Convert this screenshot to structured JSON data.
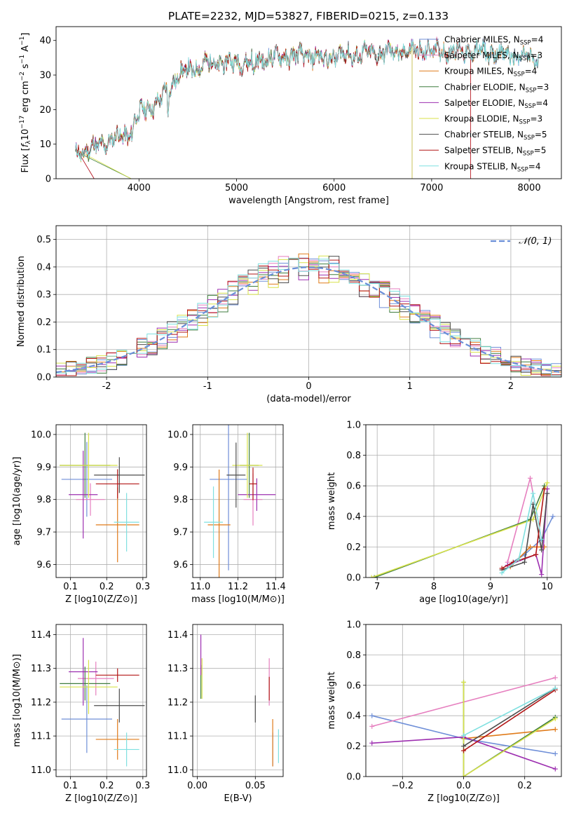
{
  "figure": {
    "title": "PLATE=2232, MJD=53827, FIBERID=0215, z=0.133"
  },
  "colors": {
    "Chabrier MILES": "#6f8fd8",
    "Salpeter MILES": "#e67fbf",
    "Kroupa MILES": "#e07b1a",
    "Chabrier ELODIE": "#3f7d3f",
    "Salpeter ELODIE": "#9d2fb0",
    "Kroupa ELODIE": "#d8e24a",
    "Chabrier STELIB": "#4d4d4d",
    "Salpeter STELIB": "#b31717",
    "Kroupa STELIB": "#7fe0e0",
    "normal": "#6a8fd8"
  },
  "chart_data": [
    {
      "type": "line",
      "panel": "spectrum",
      "title": "PLATE=2232, MJD=53827, FIBERID=0215, z=0.133",
      "xlabel": "wavelength [Angstrom, rest frame]",
      "ylabel": "Flux [f_λ 10^-17 erg cm^-2 s^-1 A^-1]",
      "xlim": [
        3150,
        8330
      ],
      "ylim": [
        0,
        44
      ],
      "xticks": [
        4000,
        5000,
        6000,
        7000,
        8000
      ],
      "yticks": [
        0,
        10,
        20,
        30,
        40
      ],
      "grid": false,
      "legend_position": "top-right",
      "series": [
        {
          "name": "Chabrier MILES, N_SSP=4",
          "x_range": [
            3350,
            8100
          ]
        },
        {
          "name": "Salpeter MILES, N_SSP=3",
          "x_range": [
            3350,
            7400
          ]
        },
        {
          "name": "Kroupa MILES, N_SSP=4",
          "x_range": [
            3350,
            8100
          ]
        },
        {
          "name": "Chabrier ELODIE, N_SSP=3",
          "x_range": [
            3350,
            6800
          ]
        },
        {
          "name": "Salpeter ELODIE, N_SSP=4",
          "x_range": [
            3350,
            6800
          ]
        },
        {
          "name": "Kroupa ELODIE, N_SSP=3",
          "x_range": [
            3350,
            6800
          ]
        },
        {
          "name": "Chabrier STELIB, N_SSP=5",
          "x_range": [
            3350,
            8100
          ]
        },
        {
          "name": "Salpeter STELIB, N_SSP=5",
          "x_range": [
            3350,
            7400
          ]
        },
        {
          "name": "Kroupa STELIB, N_SSP=4",
          "x_range": [
            3350,
            8100
          ]
        }
      ],
      "continuum": [
        [
          3350,
          7.2
        ],
        [
          3500,
          8.5
        ],
        [
          3700,
          11
        ],
        [
          3900,
          13
        ],
        [
          3950,
          17
        ],
        [
          4050,
          20
        ],
        [
          4200,
          22
        ],
        [
          4400,
          30
        ],
        [
          4700,
          33.5
        ],
        [
          5000,
          33.5
        ],
        [
          5500,
          35.5
        ],
        [
          6000,
          35.5
        ],
        [
          6500,
          36.5
        ],
        [
          7000,
          37.2
        ],
        [
          7500,
          36.8
        ],
        [
          8100,
          34.5
        ]
      ]
    },
    {
      "type": "histogram",
      "panel": "residuals",
      "xlabel": "(data-model)/error",
      "ylabel": "Normed distribution",
      "xlim": [
        -2.5,
        2.5
      ],
      "ylim": [
        0,
        0.55
      ],
      "xticks": [
        -2,
        -1,
        0,
        1,
        2
      ],
      "yticks": [
        0.0,
        0.1,
        0.2,
        0.3,
        0.4,
        0.5
      ],
      "grid": true,
      "legend_position": "top-right",
      "reference": {
        "name": "𝒩(0, 1)",
        "mean": 0,
        "sigma": 1
      },
      "bin_width": 0.1
    },
    {
      "type": "errorbar",
      "panel": "age vs Z",
      "xlabel": "Z [log10(Z/Z⊙)]",
      "ylabel": "age [log10(age/yr)]",
      "xlim": [
        0.06,
        0.31
      ],
      "ylim": [
        9.56,
        10.03
      ],
      "xticks": [
        "0.1",
        "0.2",
        "0.3"
      ],
      "yticks": [
        "9.6",
        "9.7",
        "9.8",
        "9.9",
        "10.0"
      ],
      "grid": true,
      "points": [
        {
          "series": "Chabrier MILES",
          "x": 0.145,
          "xerr": 0.07,
          "y": 9.862,
          "yerr": 0.115
        },
        {
          "series": "Salpeter MILES",
          "x": 0.155,
          "xerr": 0.04,
          "y": 9.8,
          "yerr": 0.05
        },
        {
          "series": "Kroupa MILES",
          "x": 0.23,
          "xerr": 0.06,
          "y": 9.722,
          "yerr": 0.115
        },
        {
          "series": "Chabrier ELODIE",
          "x": 0.14,
          "xerr": 0.07,
          "y": 9.905,
          "yerr": 0.1
        },
        {
          "series": "Salpeter ELODIE",
          "x": 0.135,
          "xerr": 0.04,
          "y": 9.815,
          "yerr": 0.135
        },
        {
          "series": "Kroupa ELODIE",
          "x": 0.15,
          "xerr": 0.08,
          "y": 9.905,
          "yerr": 0.1
        },
        {
          "series": "Chabrier STELIB",
          "x": 0.235,
          "xerr": 0.07,
          "y": 9.875,
          "yerr": 0.055
        },
        {
          "series": "Salpeter STELIB",
          "x": 0.23,
          "xerr": 0.06,
          "y": 9.848,
          "yerr": 0.045
        },
        {
          "series": "Kroupa STELIB",
          "x": 0.255,
          "xerr": 0.035,
          "y": 9.73,
          "yerr": 0.09
        }
      ]
    },
    {
      "type": "errorbar",
      "panel": "age vs mass",
      "xlabel": "mass [log10(M/M⊙)]",
      "xlim": [
        10.96,
        11.44
      ],
      "ylim": [
        9.56,
        10.03
      ],
      "xticks": [
        "11.0",
        "11.2",
        "11.4"
      ],
      "yticks": [
        "9.6",
        "9.7",
        "9.8",
        "9.9",
        "10.0"
      ],
      "grid": true,
      "points": [
        {
          "series": "Chabrier MILES",
          "x": 11.15,
          "xerr": 0.1,
          "y": 9.862,
          "yerr": 0.28
        },
        {
          "series": "Salpeter MILES",
          "x": 11.28,
          "xerr": 0.05,
          "y": 9.8,
          "yerr": 0.08
        },
        {
          "series": "Kroupa MILES",
          "x": 11.1,
          "xerr": 0.06,
          "y": 9.722,
          "yerr": 0.17
        },
        {
          "series": "Chabrier ELODIE",
          "x": 11.26,
          "xerr": 0.05,
          "y": 9.905,
          "yerr": 0.1
        },
        {
          "series": "Salpeter ELODIE",
          "x": 11.3,
          "xerr": 0.1,
          "y": 9.815,
          "yerr": 0.05
        },
        {
          "series": "Kroupa ELODIE",
          "x": 11.25,
          "xerr": 0.08,
          "y": 9.905,
          "yerr": 0.1
        },
        {
          "series": "Chabrier STELIB",
          "x": 11.19,
          "xerr": 0.05,
          "y": 9.875,
          "yerr": 0.1
        },
        {
          "series": "Salpeter STELIB",
          "x": 11.28,
          "xerr": 0.02,
          "y": 9.848,
          "yerr": 0.05
        },
        {
          "series": "Kroupa STELIB",
          "x": 11.07,
          "xerr": 0.05,
          "y": 9.73,
          "yerr": 0.11
        }
      ]
    },
    {
      "type": "line",
      "panel": "mass weight vs age",
      "xlabel": "age [log10(age/yr)]",
      "ylabel": "mass weight",
      "xlim": [
        6.8,
        10.25
      ],
      "ylim": [
        0,
        1
      ],
      "xticks": [
        "7",
        "8",
        "9",
        "10"
      ],
      "yticks": [
        "0.0",
        "0.2",
        "0.4",
        "0.6",
        "0.8",
        "1.0"
      ],
      "grid": true,
      "series": [
        {
          "name": "Chabrier MILES",
          "x": [
            9.3,
            9.6,
            9.9,
            10.1
          ],
          "y": [
            0.08,
            0.15,
            0.25,
            0.4
          ]
        },
        {
          "name": "Salpeter MILES",
          "x": [
            9.3,
            9.7,
            9.9
          ],
          "y": [
            0.1,
            0.65,
            0.25
          ]
        },
        {
          "name": "Kroupa MILES",
          "x": [
            9.35,
            9.7,
            9.95
          ],
          "y": [
            0.07,
            0.2,
            0.2
          ]
        },
        {
          "name": "Chabrier ELODIE",
          "x": [
            6.95,
            9.7,
            9.95
          ],
          "y": [
            0.0,
            0.38,
            0.6
          ]
        },
        {
          "name": "Salpeter ELODIE",
          "x": [
            9.3,
            9.8,
            9.9,
            10.0
          ],
          "y": [
            0.08,
            0.15,
            0.02,
            0.58
          ]
        },
        {
          "name": "Kroupa ELODIE",
          "x": [
            6.9,
            9.75,
            10.0
          ],
          "y": [
            0.0,
            0.38,
            0.62
          ]
        },
        {
          "name": "Chabrier STELIB",
          "x": [
            9.2,
            9.6,
            9.75,
            9.9,
            10.0
          ],
          "y": [
            0.05,
            0.1,
            0.48,
            0.18,
            0.55
          ]
        },
        {
          "name": "Salpeter STELIB",
          "x": [
            9.2,
            9.4,
            9.8,
            9.95
          ],
          "y": [
            0.06,
            0.1,
            0.15,
            0.58
          ]
        },
        {
          "name": "Kroupa STELIB",
          "x": [
            9.2,
            9.5,
            9.75,
            9.9
          ],
          "y": [
            0.03,
            0.12,
            0.55,
            0.25
          ]
        }
      ]
    },
    {
      "type": "errorbar",
      "panel": "mass vs Z",
      "xlabel": "Z [log10(Z/Z⊙)]",
      "ylabel": "mass [log10(M/M⊙)]",
      "xlim": [
        0.06,
        0.31
      ],
      "ylim": [
        10.98,
        11.43
      ],
      "xticks": [
        "0.1",
        "0.2",
        "0.3"
      ],
      "yticks": [
        "11.0",
        "11.1",
        "11.2",
        "11.3",
        "11.4"
      ],
      "grid": true,
      "points": [
        {
          "series": "Chabrier MILES",
          "x": 0.145,
          "xerr": 0.07,
          "y": 11.15,
          "yerr": 0.1
        },
        {
          "series": "Salpeter MILES",
          "x": 0.17,
          "xerr": 0.05,
          "y": 11.27,
          "yerr": 0.05
        },
        {
          "series": "Kroupa MILES",
          "x": 0.23,
          "xerr": 0.06,
          "y": 11.09,
          "yerr": 0.06
        },
        {
          "series": "Chabrier ELODIE",
          "x": 0.14,
          "xerr": 0.07,
          "y": 11.255,
          "yerr": 0.05
        },
        {
          "series": "Salpeter ELODIE",
          "x": 0.135,
          "xerr": 0.04,
          "y": 11.29,
          "yerr": 0.1
        },
        {
          "series": "Kroupa ELODIE",
          "x": 0.15,
          "xerr": 0.08,
          "y": 11.245,
          "yerr": 0.08
        },
        {
          "series": "Chabrier STELIB",
          "x": 0.235,
          "xerr": 0.07,
          "y": 11.19,
          "yerr": 0.05
        },
        {
          "series": "Salpeter STELIB",
          "x": 0.23,
          "xerr": 0.06,
          "y": 11.28,
          "yerr": 0.02
        },
        {
          "series": "Kroupa STELIB",
          "x": 0.255,
          "xerr": 0.035,
          "y": 11.06,
          "yerr": 0.05
        }
      ]
    },
    {
      "type": "errorbar",
      "panel": "mass vs E(B-V)",
      "xlabel": "E(B-V)",
      "xlim": [
        -0.004,
        0.074
      ],
      "ylim": [
        10.98,
        11.43
      ],
      "xticks": [
        "0.00",
        "0.05"
      ],
      "yticks": [
        "11.0",
        "11.1",
        "11.2",
        "11.3",
        "11.4"
      ],
      "grid": true,
      "points": [
        {
          "series": "Chabrier MILES",
          "x": 0.065,
          "xerr": 0,
          "y": 11.06,
          "yerr": 0.05
        },
        {
          "series": "Salpeter MILES",
          "x": 0.062,
          "xerr": 0,
          "y": 11.26,
          "yerr": 0.07
        },
        {
          "series": "Kroupa MILES",
          "x": 0.065,
          "xerr": 0,
          "y": 11.08,
          "yerr": 0.07
        },
        {
          "series": "Chabrier ELODIE",
          "x": 0.003,
          "xerr": 0,
          "y": 11.26,
          "yerr": 0.05
        },
        {
          "series": "Salpeter ELODIE",
          "x": 0.003,
          "xerr": 0,
          "y": 11.34,
          "yerr": 0.06
        },
        {
          "series": "Kroupa ELODIE",
          "x": 0.004,
          "xerr": 0,
          "y": 11.27,
          "yerr": 0.06
        },
        {
          "series": "Chabrier STELIB",
          "x": 0.05,
          "xerr": 0,
          "y": 11.18,
          "yerr": 0.04
        },
        {
          "series": "Salpeter STELIB",
          "x": 0.062,
          "xerr": 0,
          "y": 11.24,
          "yerr": 0.035
        },
        {
          "series": "Kroupa STELIB",
          "x": 0.07,
          "xerr": 0,
          "y": 11.07,
          "yerr": 0.05
        }
      ]
    },
    {
      "type": "line",
      "panel": "mass weight vs Z",
      "xlabel": "Z [log10(Z/Z⊙)]",
      "ylabel": "mass weight",
      "xlim": [
        -0.32,
        0.32
      ],
      "ylim": [
        0,
        1
      ],
      "xticks": [
        "−0.2",
        "0.0",
        "0.2"
      ],
      "yticks": [
        "0.0",
        "0.2",
        "0.4",
        "0.6",
        "0.8",
        "1.0"
      ],
      "grid": true,
      "series": [
        {
          "name": "Chabrier MILES",
          "x": [
            -0.3,
            0.0,
            0.3
          ],
          "y": [
            0.4,
            0.25,
            0.15
          ]
        },
        {
          "name": "Salpeter MILES",
          "x": [
            -0.3,
            0.3
          ],
          "y": [
            0.33,
            0.65
          ]
        },
        {
          "name": "Kroupa MILES",
          "x": [
            0.0,
            0.3
          ],
          "y": [
            0.25,
            0.31
          ]
        },
        {
          "name": "Chabrier ELODIE",
          "x": [
            0.0,
            0.0,
            0.3
          ],
          "y": [
            0.62,
            0.0,
            0.39
          ]
        },
        {
          "name": "Salpeter ELODIE",
          "x": [
            -0.3,
            0.0,
            0.3
          ],
          "y": [
            0.22,
            0.26,
            0.05
          ]
        },
        {
          "name": "Kroupa ELODIE",
          "x": [
            0.0,
            0.0,
            0.3
          ],
          "y": [
            0.62,
            0.0,
            0.38
          ]
        },
        {
          "name": "Chabrier STELIB",
          "x": [
            0.0,
            0.3
          ],
          "y": [
            0.2,
            0.58
          ]
        },
        {
          "name": "Salpeter STELIB",
          "x": [
            0.0,
            0.3
          ],
          "y": [
            0.17,
            0.57
          ]
        },
        {
          "name": "Kroupa STELIB",
          "x": [
            0.0,
            0.3
          ],
          "y": [
            0.27,
            0.58
          ]
        }
      ]
    }
  ]
}
